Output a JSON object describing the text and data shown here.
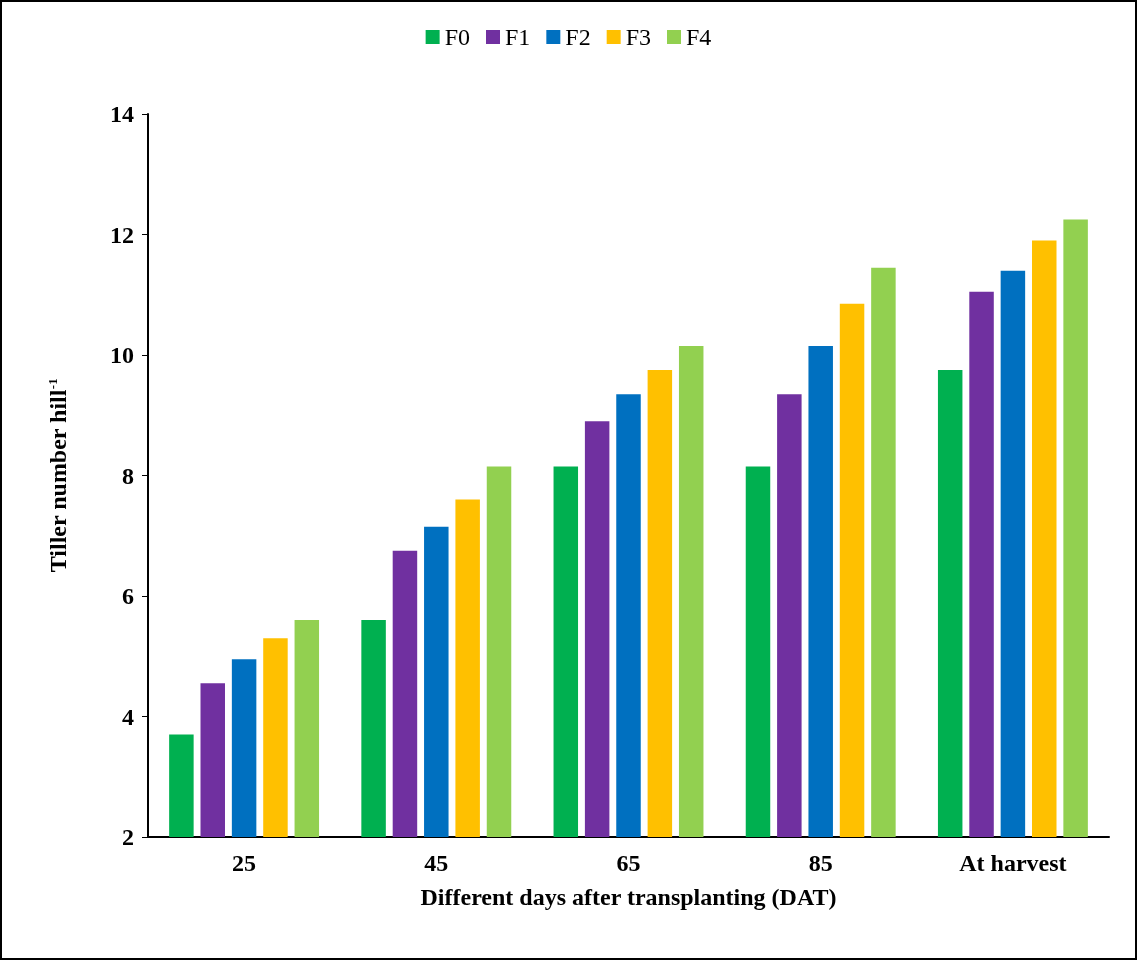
{
  "chart_data": {
    "type": "bar",
    "xlabel": "Different days after transplanting (DAT)",
    "ylabel": "Tiller number hill$^{-1}$",
    "categories": [
      "25",
      "45",
      "65",
      "85",
      "At harvest"
    ],
    "series": [
      {
        "name": "F0",
        "color": "#00b050",
        "values": [
          3.7,
          5.6,
          8.15,
          8.15,
          9.75
        ]
      },
      {
        "name": "F1",
        "color": "#7030a0",
        "values": [
          4.55,
          6.75,
          8.9,
          9.35,
          11.05
        ]
      },
      {
        "name": "F2",
        "color": "#0070c0",
        "values": [
          4.95,
          7.15,
          9.35,
          10.15,
          11.4
        ]
      },
      {
        "name": "F3",
        "color": "#ffc000",
        "values": [
          5.3,
          7.6,
          9.75,
          10.85,
          11.9
        ]
      },
      {
        "name": "F4",
        "color": "#92d050",
        "values": [
          5.6,
          8.15,
          10.15,
          11.45,
          12.25
        ]
      }
    ],
    "ylim": [
      2,
      14
    ],
    "yticks": [
      2,
      4,
      6,
      8,
      10,
      12,
      14
    ],
    "grid": false,
    "legend": "top"
  }
}
